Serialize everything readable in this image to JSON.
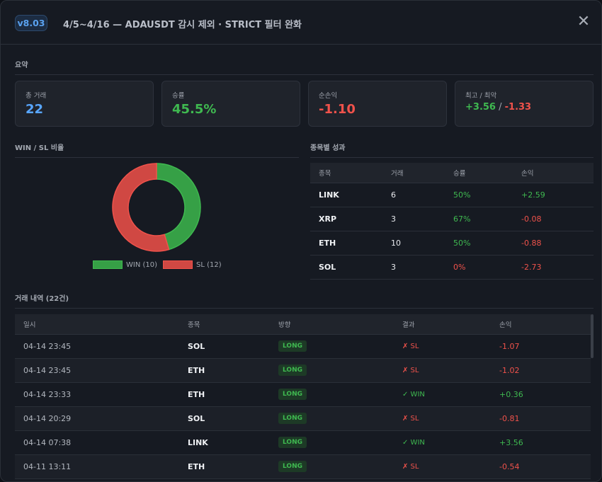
{
  "header": {
    "version": "v8.03",
    "title": "4/5~4/16 — ADAUSDT 감시 제외 · STRICT 필터 완화",
    "close_icon": "close-icon"
  },
  "summary": {
    "title": "요약",
    "cards": [
      {
        "label": "총 거래",
        "value": "22"
      },
      {
        "label": "승률",
        "value": "45.5%"
      },
      {
        "label": "순손익",
        "value": "-1.10"
      },
      {
        "label": "최고 / 최악",
        "best": "+3.56",
        "sep": " / ",
        "worst": "-1.33"
      }
    ]
  },
  "chart_data": {
    "type": "pie",
    "title": "WIN / SL 비율",
    "donut": true,
    "slices": [
      {
        "label": "WIN (10)",
        "value": 10,
        "color": "#36a046"
      },
      {
        "label": "SL (12)",
        "value": 12,
        "color": "#d04843"
      }
    ]
  },
  "by_symbol": {
    "title": "종목별 성과",
    "headers": [
      "종목",
      "거래",
      "승률",
      "손익"
    ],
    "rows": [
      [
        "LINK",
        "6",
        "50%",
        "+2.59"
      ],
      [
        "XRP",
        "3",
        "67%",
        "-0.08"
      ],
      [
        "ETH",
        "10",
        "50%",
        "-0.88"
      ],
      [
        "SOL",
        "3",
        "0%",
        "-2.73"
      ]
    ]
  },
  "trades": {
    "title": "거래 내역 (22건)",
    "headers": [
      "일시",
      "종목",
      "방향",
      "결과",
      "손익"
    ],
    "rows": [
      [
        "04-14 23:45",
        "SOL",
        "LONG",
        "✗ SL",
        "-1.07"
      ],
      [
        "04-14 23:45",
        "ETH",
        "LONG",
        "✗ SL",
        "-1.02"
      ],
      [
        "04-14 23:33",
        "ETH",
        "LONG",
        "✓ WIN",
        "+0.36"
      ],
      [
        "04-14 20:29",
        "SOL",
        "LONG",
        "✗ SL",
        "-0.81"
      ],
      [
        "04-14 07:38",
        "LINK",
        "LONG",
        "✓ WIN",
        "+3.56"
      ],
      [
        "04-11 13:11",
        "ETH",
        "LONG",
        "✗ SL",
        "-0.54"
      ]
    ]
  }
}
